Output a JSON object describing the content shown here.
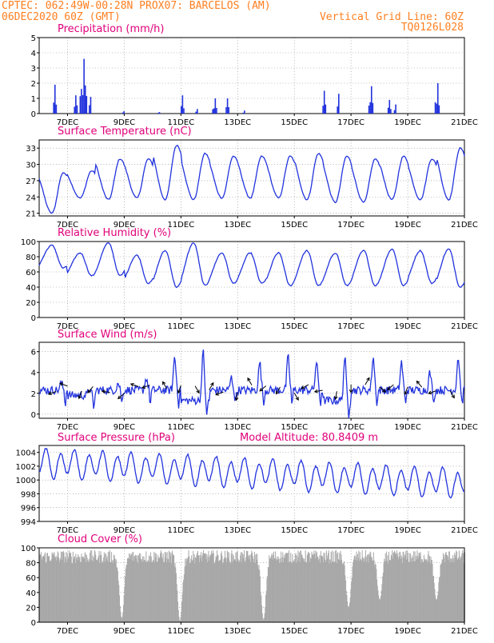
{
  "header": {
    "line1_left": "CPTEC:  062:49W-00:28N  PROX07: BARCELOS (AM)",
    "line2_left": "06DEC2020 60Z (GMT)",
    "line2_right": "Vertical Grid Line: 60Z",
    "line3_right": "TQ0126L028",
    "color": "#ff7f20"
  },
  "x_axis": {
    "ticks": [
      "7DEC",
      "9DEC",
      "11DEC",
      "13DEC",
      "15DEC",
      "17DEC",
      "19DEC",
      "21DEC"
    ],
    "range_days": [
      6.0,
      21.0
    ],
    "tick_days": [
      7,
      9,
      11,
      13,
      15,
      17,
      19,
      21
    ]
  },
  "colors": {
    "line": "#2233dd",
    "bars": "#2233dd",
    "cloud": "#a8a8a8",
    "title": "#e0007a"
  },
  "chart_data": [
    {
      "type": "bar",
      "title": "Precipitation (mm/h)",
      "ylim": [
        0,
        5
      ],
      "yticks": [
        0,
        1,
        2,
        3,
        4,
        5
      ],
      "grid": true,
      "events": [
        {
          "day": 6.55,
          "peak": 1.9,
          "width": 0.12
        },
        {
          "day": 7.3,
          "peak": 1.2,
          "width": 0.15
        },
        {
          "day": 7.55,
          "peak": 3.6,
          "width": 0.25
        },
        {
          "day": 7.8,
          "peak": 1.1,
          "width": 0.1
        },
        {
          "day": 8.95,
          "peak": 0.15,
          "width": 0.05
        },
        {
          "day": 10.2,
          "peak": 0.1,
          "width": 0.05
        },
        {
          "day": 11.05,
          "peak": 1.2,
          "width": 0.12
        },
        {
          "day": 11.55,
          "peak": 0.3,
          "width": 0.08
        },
        {
          "day": 12.2,
          "peak": 1.0,
          "width": 0.2
        },
        {
          "day": 12.65,
          "peak": 1.0,
          "width": 0.15
        },
        {
          "day": 13.2,
          "peak": 0.2,
          "width": 0.05
        },
        {
          "day": 16.05,
          "peak": 1.5,
          "width": 0.12
        },
        {
          "day": 16.55,
          "peak": 1.3,
          "width": 0.1
        },
        {
          "day": 17.7,
          "peak": 1.8,
          "width": 0.18
        },
        {
          "day": 18.35,
          "peak": 0.9,
          "width": 0.12
        },
        {
          "day": 18.55,
          "peak": 0.6,
          "width": 0.08
        },
        {
          "day": 20.05,
          "peak": 2.0,
          "width": 0.2
        }
      ]
    },
    {
      "type": "line",
      "title": "Surface Temperature (nC)",
      "ylim": [
        20.5,
        34.5
      ],
      "yticks": [
        21,
        24,
        27,
        30,
        33
      ],
      "grid": true,
      "diurnal": {
        "min_hour": 0.45,
        "max_hour": 0.85
      },
      "daily_min": [
        21.0,
        23.8,
        23.5,
        23.8,
        23.5,
        23.5,
        23.8,
        23.8,
        23.8,
        23.5,
        23.0,
        23.0,
        23.5,
        23.5,
        23.5
      ],
      "daily_max": [
        28.5,
        28.8,
        31.0,
        31.0,
        33.5,
        32.0,
        31.5,
        31.5,
        31.5,
        32.0,
        31.5,
        31.0,
        31.5,
        31.0,
        33.0
      ]
    },
    {
      "type": "line",
      "title": "Relative Humidity (%)",
      "ylim": [
        0,
        100
      ],
      "yticks": [
        0,
        20,
        40,
        60,
        80,
        100
      ],
      "grid": true,
      "diurnal": {
        "min_hour": 0.85,
        "max_hour": 0.45
      },
      "daily_min": [
        65,
        55,
        55,
        45,
        40,
        42,
        45,
        45,
        42,
        42,
        42,
        42,
        42,
        45,
        40
      ],
      "daily_max": [
        95,
        85,
        98,
        82,
        88,
        98,
        85,
        85,
        85,
        88,
        85,
        88,
        90,
        88,
        90
      ]
    },
    {
      "type": "line",
      "title": "Surface Wind (m/s)",
      "ylim": [
        -0.4,
        6.9
      ],
      "yticks": [
        0,
        2,
        4,
        6
      ],
      "grid": true,
      "daily_min": [
        1.5,
        1.0,
        1.5,
        1.5,
        1.5,
        0.5,
        1.5,
        1.5,
        1.5,
        1.5,
        0.5,
        1.5,
        1.5,
        1.5,
        1.5
      ],
      "daily_max": [
        3.0,
        2.5,
        3.0,
        3.5,
        5.5,
        6.0,
        3.5,
        5.0,
        5.5,
        5.0,
        5.5,
        5.5,
        5.0,
        4.0,
        5.5
      ],
      "arrow_days": [
        6.6,
        7.0,
        7.5,
        7.9,
        8.5,
        9.0,
        9.5,
        9.9,
        10.5,
        11.0,
        11.5,
        12.0,
        12.5,
        13.0,
        13.5,
        14.0,
        14.5,
        15.0,
        15.5,
        16.0,
        16.5,
        17.0,
        17.5,
        18.0,
        18.5,
        19.0,
        19.5,
        20.0,
        20.5
      ]
    },
    {
      "type": "line",
      "title": "Surface Pressure (hPa)",
      "annotation": "Model Altitude: 80.8409 m",
      "ylim": [
        994,
        1005
      ],
      "yticks": [
        994,
        996,
        998,
        1000,
        1002,
        1004
      ],
      "grid": true,
      "semi_diurnal": {
        "amplitude": 1.8,
        "mean_start": 1002.5,
        "mean_end": 999.5
      }
    },
    {
      "type": "bar",
      "title": "Cloud Cover (%)",
      "ylim": [
        0,
        100
      ],
      "yticks": [
        0,
        20,
        40,
        60,
        80,
        100
      ],
      "grid": true,
      "typical_level": 88,
      "dips": [
        {
          "day": 8.9,
          "value": 5
        },
        {
          "day": 10.95,
          "value": 2
        },
        {
          "day": 13.9,
          "value": 3
        },
        {
          "day": 16.9,
          "value": 20
        },
        {
          "day": 18.0,
          "value": 30
        },
        {
          "day": 20.0,
          "value": 30
        }
      ]
    }
  ]
}
